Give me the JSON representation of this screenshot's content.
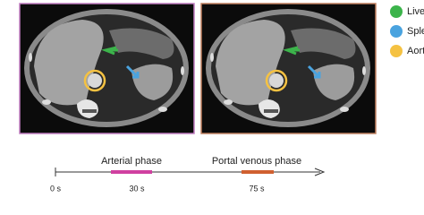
{
  "legend": {
    "items": [
      {
        "label": "Liver"
      },
      {
        "label": "Spleen"
      },
      {
        "label": "Aorta"
      }
    ]
  },
  "timeline": {
    "phases": [
      {
        "label": "Arterial phase"
      },
      {
        "label": "Portal venous phase"
      }
    ],
    "ticks": [
      {
        "label": "0 s"
      },
      {
        "label": "30 s"
      },
      {
        "label": "75 s"
      }
    ]
  }
}
